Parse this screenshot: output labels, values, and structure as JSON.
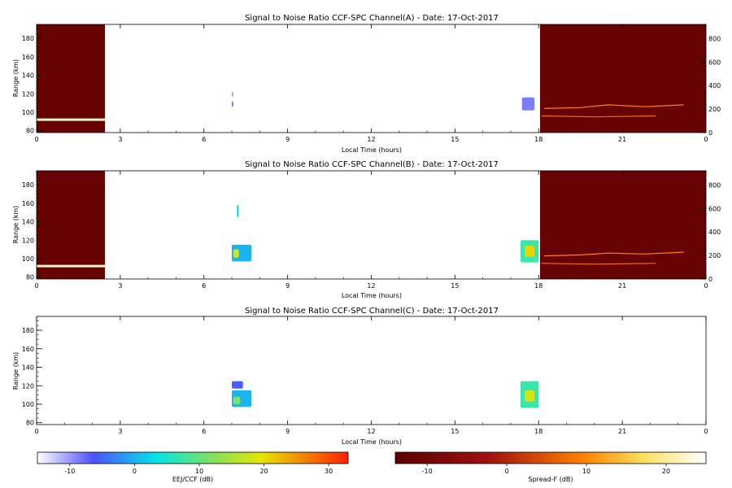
{
  "chart_data": [
    {
      "type": "heatmap",
      "title": "Signal to Noise Ratio CCF-SPC Channel(A) - Date: 17-Oct-2017",
      "xlabel": "Local Time (hours)",
      "ylabel": "Range (km)",
      "xlim": [
        0,
        24
      ],
      "ylim": [
        78,
        195
      ],
      "xticks": [
        "0",
        "3",
        "6",
        "9",
        "12",
        "15",
        "18",
        "21",
        "0"
      ],
      "yticks": [
        "80",
        "100",
        "120",
        "140",
        "160",
        "180"
      ],
      "right_axis_ticks": [
        "0",
        "200",
        "400",
        "600",
        "800"
      ],
      "right_axis_range": [
        0,
        920
      ],
      "regions": [
        {
          "kind": "spreadf_bg",
          "x0": 0,
          "x1": 2.45,
          "y0": 78,
          "y1": 195,
          "value_db": -12
        },
        {
          "kind": "spreadf_bg",
          "x0": 18.05,
          "x1": 24,
          "y0": 78,
          "y1": 195,
          "value_db": -12
        },
        {
          "kind": "eej_patch",
          "x0": 17.4,
          "x1": 17.85,
          "y0": 102,
          "y1": 116,
          "value_db": -6
        },
        {
          "kind": "eej_patch",
          "x0": 7.0,
          "x1": 7.05,
          "y0": 106,
          "y1": 112,
          "value_db": -5
        },
        {
          "kind": "eej_patch",
          "x0": 7.0,
          "x1": 7.05,
          "y0": 117,
          "y1": 122,
          "value_db": -8
        }
      ],
      "echo_lines": [
        {
          "points": [
            [
              0,
              92
            ],
            [
              2.45,
              92
            ]
          ],
          "value_db": 22
        },
        {
          "points": [
            [
              18.2,
              104
            ],
            [
              19.5,
              105
            ],
            [
              20.5,
              108
            ],
            [
              21.8,
              106
            ],
            [
              23.2,
              108
            ]
          ],
          "value_db": 6
        },
        {
          "points": [
            [
              18.1,
              96
            ],
            [
              20,
              95
            ],
            [
              22.2,
              96
            ]
          ],
          "value_db": 4
        }
      ]
    },
    {
      "type": "heatmap",
      "title": "Signal to Noise Ratio CCF-SPC Channel(B) - Date: 17-Oct-2017",
      "xlabel": "Local Time (hours)",
      "ylabel": "Range (km)",
      "xlim": [
        0,
        24
      ],
      "ylim": [
        78,
        195
      ],
      "xticks": [
        "0",
        "3",
        "6",
        "9",
        "12",
        "15",
        "18",
        "21",
        "0"
      ],
      "yticks": [
        "80",
        "100",
        "120",
        "140",
        "160",
        "180"
      ],
      "right_axis_ticks": [
        "0",
        "200",
        "400",
        "600",
        "800"
      ],
      "right_axis_range": [
        0,
        920
      ],
      "regions": [
        {
          "kind": "spreadf_bg",
          "x0": 0,
          "x1": 2.45,
          "y0": 78,
          "y1": 195,
          "value_db": -12
        },
        {
          "kind": "spreadf_bg",
          "x0": 18.05,
          "x1": 24,
          "y0": 78,
          "y1": 195,
          "value_db": -12
        },
        {
          "kind": "eej_patch",
          "x0": 17.35,
          "x1": 18.0,
          "y0": 96,
          "y1": 120,
          "value_db": 12
        },
        {
          "kind": "eej_patch",
          "x0": 17.5,
          "x1": 17.85,
          "y0": 102,
          "y1": 114,
          "value_db": 22
        },
        {
          "kind": "eej_patch",
          "x0": 7.0,
          "x1": 7.7,
          "y0": 97,
          "y1": 115,
          "value_db": 5
        },
        {
          "kind": "eej_patch",
          "x0": 7.05,
          "x1": 7.25,
          "y0": 101,
          "y1": 110,
          "value_db": 20
        },
        {
          "kind": "eej_patch",
          "x0": 7.18,
          "x1": 7.24,
          "y0": 145,
          "y1": 158,
          "value_db": 8
        }
      ],
      "echo_lines": [
        {
          "points": [
            [
              0,
              92
            ],
            [
              2.45,
              92
            ]
          ],
          "value_db": 22
        },
        {
          "points": [
            [
              18.2,
              103
            ],
            [
              19.5,
              104
            ],
            [
              20.5,
              106
            ],
            [
              21.8,
              105
            ],
            [
              23.2,
              107
            ]
          ],
          "value_db": 6
        },
        {
          "points": [
            [
              18.1,
              95
            ],
            [
              20,
              94
            ],
            [
              22.2,
              95
            ]
          ],
          "value_db": 4
        }
      ]
    },
    {
      "type": "heatmap",
      "title": "Signal to Noise Ratio CCF-SPC Channel(C) - Date: 17-Oct-2017",
      "xlabel": "Local Time (hours)",
      "ylabel": "Range (km)",
      "xlim": [
        0,
        24
      ],
      "ylim": [
        78,
        195
      ],
      "xticks": [
        "0",
        "3",
        "6",
        "9",
        "12",
        "15",
        "18",
        "21",
        "0"
      ],
      "yticks": [
        "80",
        "100",
        "120",
        "140",
        "160",
        "180"
      ],
      "right_axis_ticks": [],
      "right_axis_range": [
        0,
        920
      ],
      "regions": [
        {
          "kind": "eej_patch",
          "x0": 17.35,
          "x1": 18.0,
          "y0": 96,
          "y1": 125,
          "value_db": 12
        },
        {
          "kind": "eej_patch",
          "x0": 17.5,
          "x1": 17.85,
          "y0": 103,
          "y1": 115,
          "value_db": 20
        },
        {
          "kind": "eej_patch",
          "x0": 7.0,
          "x1": 7.7,
          "y0": 97,
          "y1": 115,
          "value_db": 5
        },
        {
          "kind": "eej_patch",
          "x0": 7.05,
          "x1": 7.3,
          "y0": 100,
          "y1": 108,
          "value_db": 15
        },
        {
          "kind": "eej_patch",
          "x0": 7.0,
          "x1": 7.4,
          "y0": 117,
          "y1": 125,
          "value_db": -2
        }
      ],
      "echo_lines": []
    }
  ],
  "colorbars": [
    {
      "label": "EEJ/CCF (dB)",
      "range": [
        -15,
        33
      ],
      "ticks": [
        "-10",
        "0",
        "10",
        "20",
        "30"
      ],
      "tick_values": [
        -10,
        0,
        10,
        20,
        30
      ],
      "colors": [
        "#ffffff",
        "#5050ff",
        "#00e6e6",
        "#e6e600",
        "#ff2000"
      ]
    },
    {
      "label": "Spread-F (dB)",
      "range": [
        -14,
        25
      ],
      "ticks": [
        "-10",
        "0",
        "10",
        "20"
      ],
      "tick_values": [
        -10,
        0,
        10,
        20
      ],
      "colors": [
        "#5a0000",
        "#a01010",
        "#ff8000",
        "#ffe060",
        "#ffffff"
      ]
    }
  ]
}
